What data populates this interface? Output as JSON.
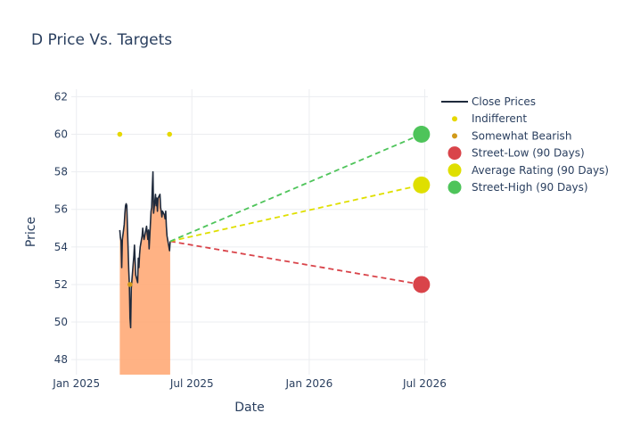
{
  "chart_data": {
    "type": "line",
    "title": "D Price Vs. Targets",
    "xlabel": "Date",
    "ylabel": "Price",
    "x_range": [
      "2024-12-24",
      "2026-07-06"
    ],
    "ylim": [
      47.2,
      62.4
    ],
    "x_ticks": [
      {
        "date": "2025-01-01",
        "label": "Jan 2025"
      },
      {
        "date": "2025-07-01",
        "label": "Jul 2025"
      },
      {
        "date": "2026-01-01",
        "label": "Jan 2026"
      },
      {
        "date": "2026-07-01",
        "label": "Jul 2026"
      }
    ],
    "y_ticks": [
      48,
      50,
      52,
      54,
      56,
      58,
      60,
      62
    ],
    "grid": true,
    "legend_position": "right",
    "colors": {
      "close_line": "#1f2a3c",
      "area_fill": "#ffa46e",
      "indifferent": "#e6d800",
      "somewhat_bearish": "#d19a19",
      "street_low": "#d9444a",
      "average": "#dfdf00",
      "street_high": "#4ec45a",
      "grid": "#ebedf0"
    },
    "series": [
      {
        "name": "Close Prices",
        "kind": "line",
        "points": [
          [
            "2025-03-10",
            54.9
          ],
          [
            "2025-03-11",
            54.5
          ],
          [
            "2025-03-12",
            54.3
          ],
          [
            "2025-03-13",
            52.9
          ],
          [
            "2025-03-14",
            54.4
          ],
          [
            "2025-03-17",
            55.2
          ],
          [
            "2025-03-18",
            55.8
          ],
          [
            "2025-03-19",
            56.2
          ],
          [
            "2025-03-20",
            56.3
          ],
          [
            "2025-03-21",
            56.2
          ],
          [
            "2025-03-24",
            52.8
          ],
          [
            "2025-03-25",
            52.0
          ],
          [
            "2025-03-26",
            50.2
          ],
          [
            "2025-03-27",
            49.7
          ],
          [
            "2025-03-28",
            51.8
          ],
          [
            "2025-03-31",
            53.1
          ],
          [
            "2025-04-01",
            53.5
          ],
          [
            "2025-04-02",
            54.1
          ],
          [
            "2025-04-03",
            53.3
          ],
          [
            "2025-04-04",
            52.5
          ],
          [
            "2025-04-07",
            52.1
          ],
          [
            "2025-04-08",
            53.4
          ],
          [
            "2025-04-09",
            52.9
          ],
          [
            "2025-04-10",
            53.6
          ],
          [
            "2025-04-11",
            54.0
          ],
          [
            "2025-04-14",
            54.6
          ],
          [
            "2025-04-15",
            55.0
          ],
          [
            "2025-04-16",
            54.6
          ],
          [
            "2025-04-17",
            54.4
          ],
          [
            "2025-04-21",
            55.1
          ],
          [
            "2025-04-22",
            54.7
          ],
          [
            "2025-04-23",
            54.4
          ],
          [
            "2025-04-24",
            54.9
          ],
          [
            "2025-04-25",
            53.9
          ],
          [
            "2025-04-28",
            55.9
          ],
          [
            "2025-04-29",
            56.1
          ],
          [
            "2025-04-30",
            57.2
          ],
          [
            "2025-05-01",
            58.0
          ],
          [
            "2025-05-02",
            55.8
          ],
          [
            "2025-05-05",
            56.8
          ],
          [
            "2025-05-06",
            56.2
          ],
          [
            "2025-05-07",
            56.6
          ],
          [
            "2025-05-08",
            55.9
          ],
          [
            "2025-05-09",
            56.6
          ],
          [
            "2025-05-12",
            56.8
          ],
          [
            "2025-05-13",
            56.1
          ],
          [
            "2025-05-14",
            55.9
          ],
          [
            "2025-05-15",
            55.6
          ],
          [
            "2025-05-16",
            55.9
          ],
          [
            "2025-05-19",
            55.7
          ],
          [
            "2025-05-20",
            55.5
          ],
          [
            "2025-05-21",
            55.9
          ],
          [
            "2025-05-22",
            55.1
          ],
          [
            "2025-05-23",
            54.6
          ],
          [
            "2025-05-27",
            53.8
          ],
          [
            "2025-05-28",
            54.3
          ]
        ]
      },
      {
        "name": "Indifferent",
        "kind": "marker",
        "points": [
          [
            "2025-03-10",
            60.0
          ],
          [
            "2025-05-27",
            60.0
          ]
        ]
      },
      {
        "name": "Somewhat Bearish",
        "kind": "marker",
        "points": [
          [
            "2025-03-26",
            52.0
          ]
        ]
      },
      {
        "name": "Street-Low (90 Days)",
        "kind": "target",
        "points": [
          [
            "2025-05-28",
            54.3
          ],
          [
            "2026-06-26",
            52.0
          ]
        ]
      },
      {
        "name": "Average Rating (90 Days)",
        "kind": "target",
        "points": [
          [
            "2025-05-28",
            54.3
          ],
          [
            "2026-06-26",
            57.3
          ]
        ]
      },
      {
        "name": "Street-High (90 Days)",
        "kind": "target",
        "points": [
          [
            "2025-05-28",
            54.3
          ],
          [
            "2026-06-26",
            60.0
          ]
        ]
      }
    ]
  }
}
